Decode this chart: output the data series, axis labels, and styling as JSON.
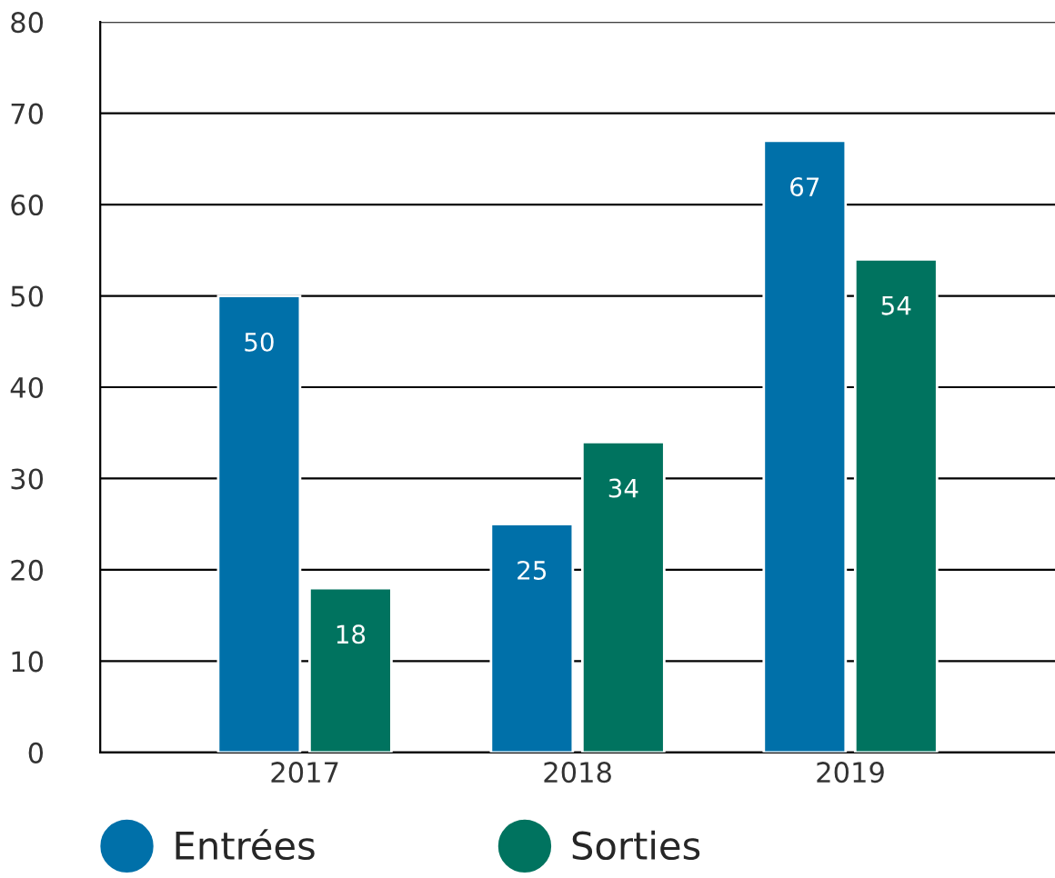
{
  "chart_data": {
    "type": "bar",
    "categories": [
      "2017",
      "2018",
      "2019"
    ],
    "series": [
      {
        "name": "Entrées",
        "color": "#0070a9",
        "values": [
          50,
          25,
          67
        ]
      },
      {
        "name": "Sorties",
        "color": "#00735f",
        "values": [
          18,
          34,
          54
        ]
      }
    ],
    "ylim": [
      0,
      80
    ],
    "yticks": [
      0,
      10,
      20,
      30,
      40,
      50,
      60,
      70,
      80
    ],
    "grid": "y",
    "legend": "bottom",
    "data_labels": true
  }
}
